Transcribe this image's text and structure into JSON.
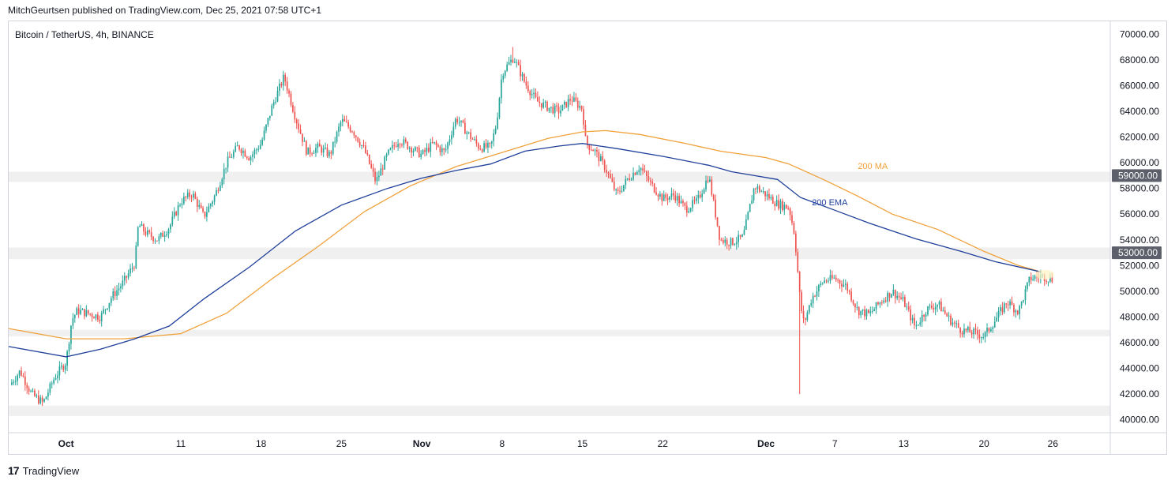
{
  "header": {
    "publisher": "MitchGeurtsen published on TradingView.com, Dec 25, 2021 07:58 UTC+1"
  },
  "symbol_label": "Bitcoin / TetherUS, 4h, BINANCE",
  "footer": {
    "logo_glyph": "17",
    "brand": "TradingView"
  },
  "colors": {
    "up": "#26a69a",
    "down": "#ef5350",
    "ma": "#f0a13a",
    "ema": "#1f3f9a",
    "zone": "#f0f0f0",
    "axis": "#131722"
  },
  "chart_data": {
    "type": "candlestick",
    "ylim": [
      39000,
      71000
    ],
    "y_ticks": [
      "70000.00",
      "68000.00",
      "66000.00",
      "64000.00",
      "62000.00",
      "60000.00",
      "58000.00",
      "56000.00",
      "54000.00",
      "52000.00",
      "50000.00",
      "48000.00",
      "46000.00",
      "44000.00",
      "42000.00",
      "40000.00"
    ],
    "y_tick_values": [
      70000,
      68000,
      66000,
      64000,
      62000,
      60000,
      58000,
      56000,
      54000,
      52000,
      50000,
      48000,
      46000,
      44000,
      42000,
      40000
    ],
    "x_ticks": [
      {
        "label": "Oct",
        "day": 0,
        "bold": true
      },
      {
        "label": "11",
        "day": 10,
        "bold": false
      },
      {
        "label": "18",
        "day": 17,
        "bold": false
      },
      {
        "label": "25",
        "day": 24,
        "bold": false
      },
      {
        "label": "Nov",
        "day": 31,
        "bold": true
      },
      {
        "label": "8",
        "day": 38,
        "bold": false
      },
      {
        "label": "15",
        "day": 45,
        "bold": false
      },
      {
        "label": "22",
        "day": 52,
        "bold": false
      },
      {
        "label": "Dec",
        "day": 61,
        "bold": true
      },
      {
        "label": "7",
        "day": 67,
        "bold": false
      },
      {
        "label": "13",
        "day": 73,
        "bold": false
      },
      {
        "label": "20",
        "day": 80,
        "bold": false
      },
      {
        "label": "26",
        "day": 86,
        "bold": false
      }
    ],
    "x_range_days": [
      -5,
      91
    ],
    "price_levels": [
      {
        "value": 59000,
        "label": "59000.00",
        "zone": [
          58500,
          59300
        ]
      },
      {
        "value": 53000,
        "label": "53000.00",
        "zone": [
          52500,
          53400
        ]
      }
    ],
    "zones": [
      {
        "low": 46500,
        "high": 47000
      },
      {
        "low": 40300,
        "high": 41100
      }
    ],
    "series": [
      {
        "name": "200 MA",
        "points": [
          [
            -5,
            47100
          ],
          [
            0,
            46300
          ],
          [
            5,
            46300
          ],
          [
            10,
            46700
          ],
          [
            14,
            48300
          ],
          [
            18,
            51000
          ],
          [
            22,
            53500
          ],
          [
            26,
            56200
          ],
          [
            30,
            58200
          ],
          [
            34,
            59700
          ],
          [
            38,
            60800
          ],
          [
            42,
            61900
          ],
          [
            45,
            62400
          ],
          [
            47,
            62500
          ],
          [
            50,
            62200
          ],
          [
            54,
            61500
          ],
          [
            57,
            60900
          ],
          [
            61,
            60400
          ],
          [
            63,
            59900
          ],
          [
            66,
            58700
          ],
          [
            69,
            57400
          ],
          [
            72,
            56000
          ],
          [
            76,
            54800
          ],
          [
            80,
            53100
          ],
          [
            83,
            52000
          ],
          [
            85,
            51500
          ]
        ]
      },
      {
        "name": "200 EMA",
        "points": [
          [
            -5,
            45700
          ],
          [
            0,
            44900
          ],
          [
            3,
            45500
          ],
          [
            6,
            46300
          ],
          [
            9,
            47300
          ],
          [
            12,
            49400
          ],
          [
            16,
            51900
          ],
          [
            20,
            54700
          ],
          [
            24,
            56700
          ],
          [
            28,
            58000
          ],
          [
            31,
            58800
          ],
          [
            34,
            59400
          ],
          [
            37,
            59900
          ],
          [
            40,
            60900
          ],
          [
            43,
            61300
          ],
          [
            45,
            61500
          ],
          [
            48,
            61100
          ],
          [
            52,
            60500
          ],
          [
            56,
            59800
          ],
          [
            58,
            59300
          ],
          [
            60,
            59000
          ],
          [
            62,
            58700
          ],
          [
            64,
            57300
          ],
          [
            67,
            56300
          ],
          [
            70,
            55300
          ],
          [
            74,
            54100
          ],
          [
            78,
            53100
          ],
          [
            81,
            52300
          ],
          [
            84,
            51700
          ],
          [
            85,
            51500
          ]
        ]
      }
    ],
    "annotations": [
      {
        "text": "200 MA",
        "day": 69,
        "value": 59500
      },
      {
        "text": "200 EMA",
        "day": 65,
        "value": 56700
      }
    ],
    "price_path": [
      [
        -5,
        42600
      ],
      [
        -4,
        43800
      ],
      [
        -3,
        42000
      ],
      [
        -2,
        41300
      ],
      [
        -1,
        43300
      ],
      [
        0,
        44500
      ],
      [
        0.5,
        47800
      ],
      [
        1,
        48500
      ],
      [
        3,
        48000
      ],
      [
        4,
        49600
      ],
      [
        5,
        50700
      ],
      [
        6,
        52200
      ],
      [
        6.3,
        55200
      ],
      [
        7,
        54500
      ],
      [
        8,
        54000
      ],
      [
        9,
        55000
      ],
      [
        10,
        57000
      ],
      [
        11,
        57600
      ],
      [
        12,
        55800
      ],
      [
        13,
        57500
      ],
      [
        14,
        60000
      ],
      [
        15,
        61300
      ],
      [
        16,
        60400
      ],
      [
        17,
        61500
      ],
      [
        18,
        64500
      ],
      [
        19,
        66700
      ],
      [
        20,
        63500
      ],
      [
        21,
        60800
      ],
      [
        22,
        61200
      ],
      [
        23,
        60600
      ],
      [
        24,
        63300
      ],
      [
        25,
        62500
      ],
      [
        26,
        61000
      ],
      [
        27,
        58500
      ],
      [
        28,
        60600
      ],
      [
        29,
        61800
      ],
      [
        30,
        61200
      ],
      [
        31,
        60600
      ],
      [
        32,
        61500
      ],
      [
        33,
        60800
      ],
      [
        34,
        63500
      ],
      [
        35,
        62300
      ],
      [
        36,
        61200
      ],
      [
        37,
        61200
      ],
      [
        37.5,
        63000
      ],
      [
        38,
        67000
      ],
      [
        39,
        68200
      ],
      [
        40,
        66200
      ],
      [
        41,
        64800
      ],
      [
        42,
        64300
      ],
      [
        43,
        64000
      ],
      [
        44,
        65000
      ],
      [
        45,
        64200
      ],
      [
        45.3,
        61500
      ],
      [
        46,
        61000
      ],
      [
        47,
        59600
      ],
      [
        48,
        57500
      ],
      [
        49,
        58800
      ],
      [
        50,
        59700
      ],
      [
        51,
        58300
      ],
      [
        52,
        57200
      ],
      [
        53,
        57500
      ],
      [
        54,
        56400
      ],
      [
        55,
        57000
      ],
      [
        56,
        59000
      ],
      [
        57,
        54000
      ],
      [
        58,
        53800
      ],
      [
        59,
        54200
      ],
      [
        60,
        58200
      ],
      [
        61,
        57500
      ],
      [
        62,
        56800
      ],
      [
        63,
        56500
      ],
      [
        63.5,
        54400
      ],
      [
        64,
        49000
      ],
      [
        64.3,
        47500
      ],
      [
        65,
        49500
      ],
      [
        66,
        50800
      ],
      [
        67,
        51000
      ],
      [
        68,
        50400
      ],
      [
        69,
        48500
      ],
      [
        70,
        48200
      ],
      [
        71,
        49200
      ],
      [
        72,
        50000
      ],
      [
        73,
        49200
      ],
      [
        74,
        47200
      ],
      [
        75,
        48600
      ],
      [
        76,
        49000
      ],
      [
        77,
        47800
      ],
      [
        78,
        47000
      ],
      [
        79,
        46800
      ],
      [
        80,
        46500
      ],
      [
        81,
        47800
      ],
      [
        82,
        49200
      ],
      [
        83,
        48400
      ],
      [
        84,
        51000
      ],
      [
        85,
        51200
      ],
      [
        86,
        50900
      ]
    ],
    "wick_extremes": [
      {
        "day": 64,
        "low": 42000
      },
      {
        "day": 39,
        "high": 69000
      }
    ]
  }
}
